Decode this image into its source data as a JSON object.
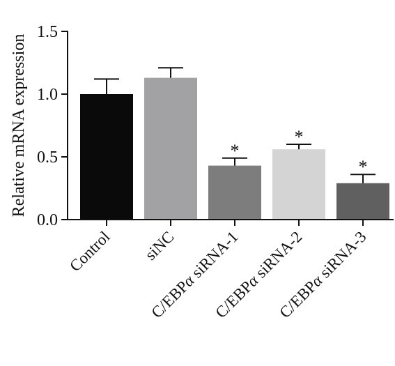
{
  "chart_data": {
    "type": "bar",
    "ylabel": "Relative mRNA expression",
    "xlabel": "",
    "ylim": [
      0,
      1.5
    ],
    "yticks": [
      "0.0",
      "0.5",
      "1.0",
      "1.5"
    ],
    "ytick_values": [
      0,
      0.5,
      1.0,
      1.5
    ],
    "categories": [
      "Control",
      "siNC",
      "C/EBPα siRNA-1",
      "C/EBPα siRNA-2",
      "C/EBPα siRNA-3"
    ],
    "category_parts": [
      {
        "prefix": "Control",
        "alpha": "",
        "suffix": ""
      },
      {
        "prefix": "siNC",
        "alpha": "",
        "suffix": ""
      },
      {
        "prefix": "C/EBP",
        "alpha": "α",
        "suffix": " siRNA-1"
      },
      {
        "prefix": "C/EBP",
        "alpha": "α",
        "suffix": " siRNA-2"
      },
      {
        "prefix": "C/EBP",
        "alpha": "α",
        "suffix": " siRNA-3"
      }
    ],
    "values": [
      1.0,
      1.13,
      0.43,
      0.56,
      0.29
    ],
    "errors": [
      0.12,
      0.08,
      0.06,
      0.04,
      0.07
    ],
    "significance": [
      "",
      "",
      "*",
      "*",
      "*"
    ],
    "colors": [
      "#0a0a0a",
      "#a2a2a4",
      "#7d7d7d",
      "#d4d4d4",
      "#606060"
    ],
    "grid": false,
    "legend": "none"
  }
}
